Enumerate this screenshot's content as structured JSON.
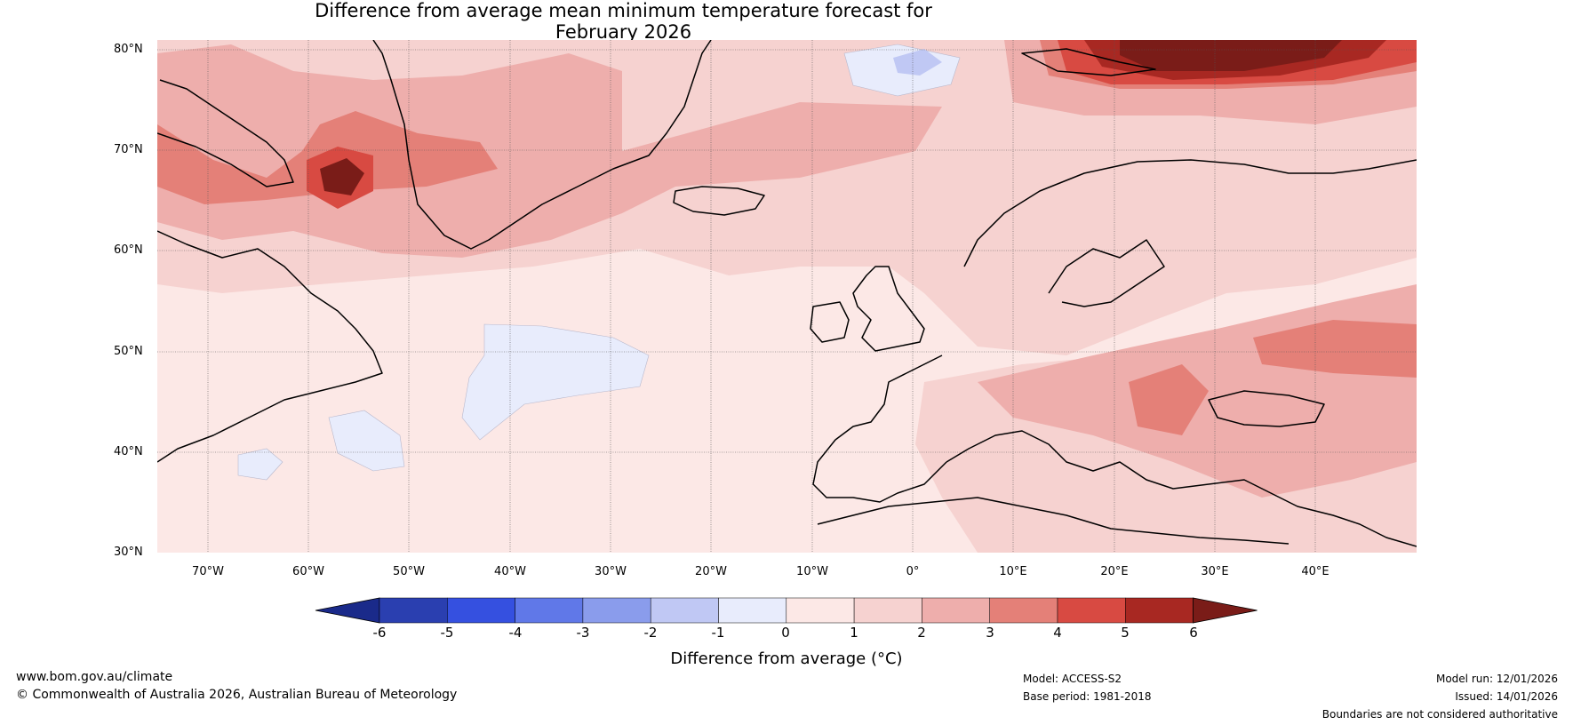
{
  "title": {
    "line1": "Difference from average mean minimum temperature forecast for",
    "line2": "February 2026"
  },
  "map": {
    "latitude_labels": [
      "80°N",
      "70°N",
      "60°N",
      "50°N",
      "40°N",
      "30°N"
    ],
    "longitude_labels": [
      "70°W",
      "60°W",
      "50°W",
      "40°W",
      "30°W",
      "20°W",
      "10°W",
      "0°",
      "10°E",
      "20°E",
      "30°E",
      "40°E"
    ],
    "extent": {
      "lon_min": -75,
      "lon_max": 50,
      "lat_min": 30,
      "lat_max": 81
    }
  },
  "colorbar": {
    "ticks": [
      "-6",
      "-5",
      "-4",
      "-3",
      "-2",
      "-1",
      "0",
      "1",
      "2",
      "3",
      "4",
      "5",
      "6"
    ],
    "colors": [
      "#1a2a8a",
      "#2a3fb0",
      "#3550e0",
      "#6078e8",
      "#8a9cec",
      "#c0c8f4",
      "#e8ecfc",
      "#fce8e6",
      "#f6d2d0",
      "#eeaeac",
      "#e48078",
      "#d84a42",
      "#a82822",
      "#7a1c18"
    ],
    "label": "Difference from average (°C)"
  },
  "footer": {
    "website": "www.bom.gov.au/climate",
    "copyright": "© Commonwealth of Australia 2026, Australian Bureau of Meteorology",
    "model": "Model: ACCESS-S2",
    "base_period": "Base period: 1981-2018",
    "model_run": "Model run: 12/01/2026",
    "issued": "Issued: 14/01/2026",
    "disclaimer": "Boundaries are not considered authoritative"
  }
}
